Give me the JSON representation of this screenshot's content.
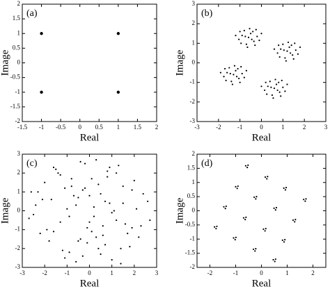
{
  "chart_data": [
    {
      "type": "scatter",
      "annotation": "(a)",
      "xlabel": "Real",
      "ylabel": "Image",
      "color": "#000000",
      "x": [
        -1,
        1,
        -1,
        1
      ],
      "values": [
        1,
        1,
        -1,
        -1
      ],
      "xlim": [
        -1.5,
        2
      ],
      "ylim": [
        -2,
        2
      ],
      "xticks": [
        -1.5,
        -1,
        -0.5,
        0,
        0.5,
        1,
        1.5,
        2
      ],
      "yticks": [
        -2,
        -1.5,
        -1,
        -0.5,
        0,
        0.5,
        1,
        1.5,
        2
      ]
    },
    {
      "type": "scatter",
      "annotation": "(b)",
      "xlabel": "Real",
      "ylabel": "Image",
      "color": "#000000",
      "x": [
        -0.5,
        -0.9,
        -0.35,
        -0.7,
        -0.2,
        -1.05,
        -0.55,
        -0.4,
        -0.8,
        -0.3,
        -0.95,
        -0.6,
        -0.45,
        -0.75,
        -0.1,
        -0.65,
        -0.25,
        -1.0,
        -1.2,
        0.0,
        1.3,
        0.9,
        1.45,
        1.1,
        1.6,
        0.75,
        1.25,
        1.4,
        1.0,
        1.5,
        0.85,
        1.2,
        1.35,
        1.05,
        1.7,
        1.15,
        1.55,
        0.8,
        0.6,
        1.8,
        -1.2,
        -1.6,
        -1.05,
        -1.4,
        -0.9,
        -1.75,
        -1.25,
        -1.1,
        -1.5,
        -1.0,
        -1.65,
        -1.3,
        -1.15,
        -1.45,
        -0.8,
        -1.35,
        -0.95,
        -1.7,
        -1.9,
        -0.7,
        0.7,
        0.3,
        0.85,
        0.5,
        1.0,
        0.15,
        0.65,
        0.8,
        0.4,
        0.9,
        0.25,
        0.6,
        0.75,
        0.45,
        1.1,
        0.55,
        0.95,
        0.2,
        0.0,
        1.2
      ],
      "values": [
        1.5,
        1.4,
        1.1,
        0.95,
        1.35,
        1.2,
        1.75,
        1.6,
        1.65,
        0.9,
        1.0,
        1.3,
        1.2,
        1.35,
        1.15,
        0.8,
        1.7,
        1.6,
        1.4,
        1.5,
        0.8,
        0.7,
        0.4,
        0.25,
        0.65,
        0.5,
        1.05,
        0.9,
        0.95,
        0.2,
        0.3,
        0.6,
        0.5,
        0.65,
        0.45,
        0.1,
        1.0,
        0.9,
        0.7,
        0.8,
        -0.4,
        -0.5,
        -0.8,
        -0.95,
        -0.55,
        -0.7,
        -0.15,
        -0.3,
        -0.25,
        -1.0,
        -0.9,
        -0.6,
        -0.7,
        -0.55,
        -0.75,
        -1.1,
        -0.2,
        -0.3,
        -0.5,
        -0.4,
        -1.1,
        -1.2,
        -1.5,
        -1.65,
        -1.25,
        -1.4,
        -0.85,
        -1.0,
        -0.95,
        -1.7,
        -1.6,
        -1.3,
        -1.4,
        -1.25,
        -1.45,
        -1.8,
        -0.9,
        -1.0,
        -1.2,
        -1.1
      ],
      "xlim": [
        -3,
        3
      ],
      "ylim": [
        -3,
        3
      ],
      "xticks": [
        -3,
        -2,
        -1,
        0,
        1,
        2,
        3
      ],
      "yticks": [
        -3,
        -2,
        -1,
        0,
        1,
        2,
        3
      ]
    },
    {
      "type": "scatter",
      "annotation": "(c)",
      "xlabel": "Real",
      "ylabel": "Image",
      "color": "#000000",
      "x": [
        0.2,
        -1.1,
        1.5,
        -0.4,
        0.8,
        -2.1,
        2.3,
        -0.9,
        0.1,
        1.2,
        -1.6,
        0.5,
        -0.2,
        1.9,
        -2.5,
        0.7,
        -0.6,
        1.0,
        -1.3,
        2.6,
        -0.1,
        0.4,
        -1.8,
        1.4,
        -0.7,
        0.9,
        -2.3,
        1.7,
        0.0,
        -1.0,
        2.0,
        -0.3,
        0.6,
        -1.5,
        1.1,
        -2.7,
        0.3,
        -0.8,
        1.6,
        -1.2,
        2.2,
        -0.5,
        0.8,
        -1.9,
        1.3,
        -0.1,
        0.2,
        -2.0,
        2.4,
        -0.6,
        1.0,
        -1.4,
        0.5,
        -0.3,
        1.8,
        -2.2,
        0.9,
        -0.9,
        0.1,
        1.5,
        -1.7,
        2.7,
        -0.4,
        0.6,
        -1.1,
        1.2,
        -2.4,
        0.3,
        -0.2,
        1.9,
        -1.3,
        0.7,
        -0.8,
        2.1,
        -1.6,
        0.4,
        -0.5,
        1.4,
        -2.6,
        0.0
      ],
      "values": [
        -0.3,
        1.2,
        0.4,
        -1.5,
        2.1,
        0.6,
        -0.8,
        -2.2,
        1.7,
        -0.5,
        -1.1,
        0.9,
        2.5,
        1.1,
        -0.2,
        -1.8,
        0.3,
        -2.6,
        1.9,
        0.5,
        -0.9,
        1.4,
        -1.6,
        -2.0,
        0.8,
        2.3,
        1.0,
        -1.2,
        -0.6,
        0.1,
        1.6,
        -2.4,
        -1.3,
        2.2,
        0.0,
        -0.4,
        2.7,
        1.3,
        -0.7,
        -2.1,
        -1.4,
        0.7,
        1.8,
        -1.0,
        2.4,
        -1.7,
        0.2,
        1.5,
        0.9,
        -2.7,
        -0.1,
        2.0,
        -2.3,
        1.1,
        -1.9,
        -1.2,
        0.4,
        -0.3,
        -1.1,
        1.3,
        0.6,
        -0.5,
        2.6,
        -0.8,
        -2.5,
        2.0,
        0.3,
        -1.4,
        1.2,
        -0.9,
        -0.6,
        0.5,
        1.7,
        0.1,
        2.3,
        -2.0,
        -1.6,
        -2.8,
        1.0,
        0.8
      ],
      "xlim": [
        -3,
        3
      ],
      "ylim": [
        -3,
        3
      ],
      "xticks": [
        -3,
        -2,
        -1,
        0,
        1,
        2,
        3
      ],
      "yticks": [
        -3,
        -2,
        -1,
        0,
        1,
        2,
        3
      ]
    },
    {
      "type": "scatter",
      "annotation": "(d)",
      "xlabel": "Real",
      "ylabel": "Image",
      "color": "#000000",
      "x": [
        -0.52,
        -0.61,
        -0.55,
        0.24,
        0.15,
        0.21,
        -0.91,
        -1.0,
        -0.94,
        0.96,
        0.87,
        0.93,
        -0.19,
        -0.28,
        -0.22,
        1.73,
        1.64,
        1.7,
        -1.37,
        -1.46,
        -1.4,
        0.58,
        0.49,
        0.55,
        -0.6,
        -0.69,
        -0.63,
        1.32,
        1.23,
        1.29,
        -1.73,
        -1.82,
        -1.76,
        0.17,
        0.08,
        0.14,
        -0.99,
        -1.08,
        -1.02,
        0.91,
        0.82,
        0.88,
        -0.22,
        -0.31,
        -0.25,
        0.55,
        0.46,
        0.52
      ],
      "values": [
        1.61,
        1.59,
        1.53,
        1.21,
        1.19,
        1.13,
        0.87,
        0.85,
        0.79,
        0.82,
        0.8,
        0.74,
        0.5,
        0.48,
        0.42,
        0.42,
        0.4,
        0.34,
        0.16,
        0.14,
        0.08,
        0.11,
        0.09,
        0.03,
        -0.23,
        -0.25,
        -0.31,
        -0.31,
        -0.33,
        -0.39,
        -0.55,
        -0.57,
        -0.63,
        -0.63,
        -0.65,
        -0.71,
        -0.94,
        -0.96,
        -1.02,
        -1.02,
        -1.04,
        -1.1,
        -1.34,
        -1.36,
        -1.42,
        -1.71,
        -1.73,
        -1.79
      ],
      "xlim": [
        -2.5,
        2.5
      ],
      "ylim": [
        -2,
        2
      ],
      "xticks": [
        -2,
        -1,
        0,
        1,
        2
      ],
      "yticks": [
        -2,
        -1.5,
        -1,
        -0.5,
        0,
        0.5,
        1,
        1.5,
        2
      ]
    }
  ]
}
